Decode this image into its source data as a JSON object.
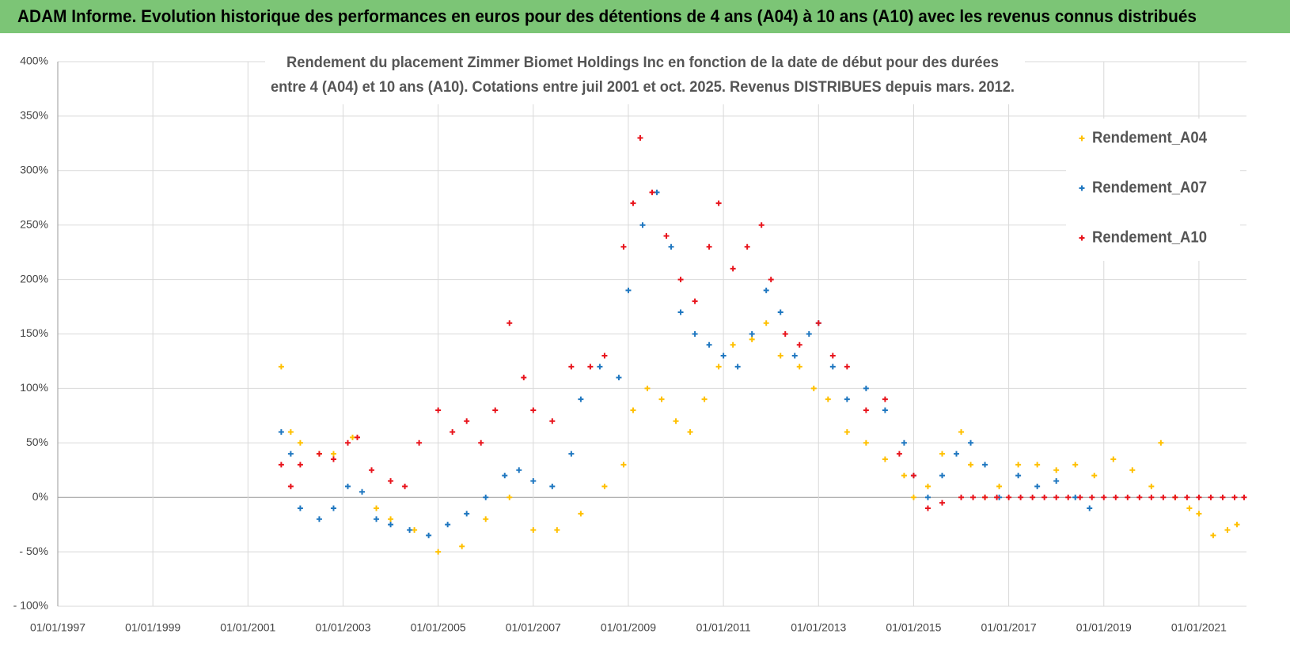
{
  "header": "ADAM Informe. Evolution historique des performances en euros pour des détentions de 4 ans (A04) à 10 ans (A10) avec les revenus connus distribués",
  "chart_data": {
    "type": "scatter",
    "title": [
      "Rendement du placement Zimmer Biomet Holdings Inc en fonction de la date de début pour des durées",
      "entre 4 (A04) et 10 ans (A10). Cotations entre juil 2001 et oct. 2025. Revenus DISTRIBUES depuis mars. 2012."
    ],
    "xlim": [
      1997,
      2022
    ],
    "xticks": [
      {
        "value": 1997,
        "label": "01/01/1997"
      },
      {
        "value": 1999,
        "label": "01/01/1999"
      },
      {
        "value": 2001,
        "label": "01/01/2001"
      },
      {
        "value": 2003,
        "label": "01/01/2003"
      },
      {
        "value": 2005,
        "label": "01/01/2005"
      },
      {
        "value": 2007,
        "label": "01/01/2007"
      },
      {
        "value": 2009,
        "label": "01/01/2009"
      },
      {
        "value": 2011,
        "label": "01/01/2011"
      },
      {
        "value": 2013,
        "label": "01/01/2013"
      },
      {
        "value": 2015,
        "label": "01/01/2015"
      },
      {
        "value": 2017,
        "label": "01/01/2017"
      },
      {
        "value": 2019,
        "label": "01/01/2019"
      },
      {
        "value": 2021,
        "label": "01/01/2021"
      }
    ],
    "ylim": [
      -100,
      400
    ],
    "yticks": [
      {
        "value": -100,
        "label": "- 100%"
      },
      {
        "value": -50,
        "label": "- 50%"
      },
      {
        "value": 0,
        "label": "0%"
      },
      {
        "value": 50,
        "label": "50%"
      },
      {
        "value": 100,
        "label": "100%"
      },
      {
        "value": 150,
        "label": "150%"
      },
      {
        "value": 200,
        "label": "200%"
      },
      {
        "value": 250,
        "label": "250%"
      },
      {
        "value": 300,
        "label": "300%"
      },
      {
        "value": 350,
        "label": "350%"
      },
      {
        "value": 400,
        "label": "400%"
      }
    ],
    "grid": true,
    "legend": "upper right",
    "series": [
      {
        "name": "Rendement_A04",
        "color": "#ffc000",
        "x": [
          2001.7,
          2001.9,
          2002.1,
          2002.5,
          2002.8,
          2003.2,
          2003.7,
          2004.0,
          2004.5,
          2005.0,
          2005.5,
          2006.0,
          2006.5,
          2007.0,
          2007.5,
          2008.0,
          2008.5,
          2008.9,
          2009.1,
          2009.4,
          2009.7,
          2010.0,
          2010.3,
          2010.6,
          2010.9,
          2011.2,
          2011.6,
          2011.9,
          2012.2,
          2012.6,
          2012.9,
          2013.2,
          2013.6,
          2014.0,
          2014.4,
          2014.8,
          2015.0,
          2015.3,
          2015.6,
          2016.0,
          2016.2,
          2016.5,
          2016.8,
          2017.2,
          2017.6,
          2018.0,
          2018.4,
          2018.8,
          2019.2,
          2019.6,
          2020.0,
          2020.2,
          2020.5,
          2020.8,
          2021.0,
          2021.3,
          2021.6,
          2021.8
        ],
        "values": [
          120,
          60,
          50,
          40,
          40,
          55,
          -10,
          -20,
          -30,
          -50,
          -45,
          -20,
          0,
          -30,
          -30,
          -15,
          10,
          30,
          80,
          100,
          90,
          70,
          60,
          90,
          120,
          140,
          145,
          160,
          130,
          120,
          100,
          90,
          60,
          50,
          35,
          20,
          0,
          10,
          40,
          60,
          30,
          0,
          10,
          30,
          30,
          25,
          30,
          20,
          35,
          25,
          10,
          50,
          0,
          -10,
          -15,
          -35,
          -30,
          -25
        ]
      },
      {
        "name": "Rendement_A07",
        "color": "#1f77c0",
        "x": [
          2001.7,
          2001.9,
          2002.1,
          2002.5,
          2002.8,
          2003.1,
          2003.4,
          2003.7,
          2004.0,
          2004.4,
          2004.8,
          2005.2,
          2005.6,
          2006.0,
          2006.4,
          2006.7,
          2007.0,
          2007.4,
          2007.8,
          2008.0,
          2008.4,
          2008.8,
          2009.0,
          2009.3,
          2009.6,
          2009.9,
          2010.1,
          2010.4,
          2010.7,
          2011.0,
          2011.3,
          2011.6,
          2011.9,
          2012.2,
          2012.5,
          2012.8,
          2013.0,
          2013.3,
          2013.6,
          2014.0,
          2014.4,
          2014.8,
          2015.0,
          2015.3,
          2015.6,
          2015.9,
          2016.2,
          2016.5,
          2016.8,
          2017.2,
          2017.6,
          2018.0,
          2018.4,
          2018.7
        ],
        "values": [
          60,
          40,
          -10,
          -20,
          -10,
          10,
          5,
          -20,
          -25,
          -30,
          -35,
          -25,
          -15,
          0,
          20,
          25,
          15,
          10,
          40,
          90,
          120,
          110,
          190,
          250,
          280,
          230,
          170,
          150,
          140,
          130,
          120,
          150,
          190,
          170,
          130,
          150,
          160,
          120,
          90,
          100,
          80,
          50,
          20,
          0,
          20,
          40,
          50,
          30,
          0,
          20,
          10,
          15,
          0,
          -10
        ]
      },
      {
        "name": "Rendement_A10",
        "color": "#e8141c",
        "x": [
          2001.7,
          2001.9,
          2002.1,
          2002.5,
          2002.8,
          2003.1,
          2003.3,
          2003.6,
          2004.0,
          2004.3,
          2004.6,
          2005.0,
          2005.3,
          2005.6,
          2005.9,
          2006.2,
          2006.5,
          2006.8,
          2007.0,
          2007.4,
          2007.8,
          2008.2,
          2008.5,
          2008.9,
          2009.1,
          2009.25,
          2009.5,
          2009.8,
          2010.1,
          2010.4,
          2010.7,
          2010.9,
          2011.2,
          2011.5,
          2011.8,
          2012.0,
          2012.3,
          2012.6,
          2013.0,
          2013.3,
          2013.6,
          2014.0,
          2014.4,
          2014.7,
          2015.0,
          2015.3,
          2015.6,
          2016.0,
          2016.25,
          2016.5,
          2016.75,
          2017.0,
          2017.25,
          2017.5,
          2017.75,
          2018.0,
          2018.25,
          2018.5,
          2018.75,
          2019.0,
          2019.25,
          2019.5,
          2019.75,
          2020.0,
          2020.25,
          2020.5,
          2020.75,
          2021.0,
          2021.25,
          2021.5,
          2021.75,
          2021.95
        ],
        "values": [
          30,
          10,
          30,
          40,
          35,
          50,
          55,
          25,
          15,
          10,
          50,
          80,
          60,
          70,
          50,
          80,
          160,
          110,
          80,
          70,
          120,
          120,
          130,
          230,
          270,
          330,
          280,
          240,
          200,
          180,
          230,
          270,
          210,
          230,
          250,
          200,
          150,
          140,
          160,
          130,
          120,
          80,
          90,
          40,
          20,
          -10,
          -5,
          0,
          0,
          0,
          0,
          0,
          0,
          0,
          0,
          0,
          0,
          0,
          0,
          0,
          0,
          0,
          0,
          0,
          0,
          0,
          0,
          0,
          0,
          0,
          0,
          0
        ]
      }
    ]
  }
}
